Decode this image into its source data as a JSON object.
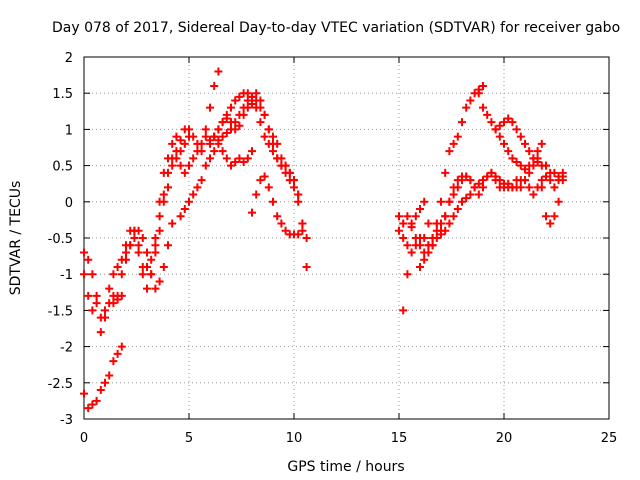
{
  "chart_data": {
    "type": "scatter",
    "title": "Day 078 of 2017, Sidereal Day-to-day VTEC variation (SDTVAR) for receiver gabo",
    "xlabel": "GPS time / hours",
    "ylabel": "SDTVAR / TECUs",
    "xlim": [
      0,
      25
    ],
    "ylim": [
      -3,
      2
    ],
    "xticks": [
      "0",
      "5",
      "10",
      "15",
      "20",
      "25"
    ],
    "yticks": [
      "-3",
      "-2.5",
      "-2",
      "-1.5",
      "-1",
      "-0.5",
      "0",
      "0.5",
      "1",
      "1.5",
      "2"
    ],
    "grid": true,
    "marker": "+",
    "color": "#ff0000",
    "series": [
      {
        "name": "s1",
        "x": [
          0.0,
          0.2,
          0.4,
          0.6,
          0.8,
          1.0,
          1.2,
          1.4,
          1.6,
          1.8,
          2.0,
          2.2,
          2.4,
          2.6,
          2.8,
          3.0,
          3.2,
          3.4,
          3.6,
          3.8,
          4.0,
          4.2,
          4.4,
          4.6,
          4.8,
          5.0,
          5.2,
          5.4,
          5.6,
          5.8,
          6.0,
          6.2,
          6.4
        ],
        "y": [
          -1.0,
          -1.3,
          -1.5,
          -1.4,
          -1.6,
          -1.5,
          -1.2,
          -1.0,
          -0.9,
          -0.8,
          -0.6,
          -0.4,
          -0.5,
          -0.7,
          -0.9,
          -0.9,
          -0.8,
          -0.7,
          -0.2,
          0.1,
          0.2,
          0.5,
          0.6,
          0.7,
          0.8,
          0.9,
          0.9,
          0.8,
          0.7,
          1.0,
          1.3,
          1.6,
          1.8
        ]
      },
      {
        "name": "s2",
        "x": [
          0.0,
          0.2,
          0.4,
          0.6,
          0.8,
          1.0,
          1.2,
          1.4,
          1.6,
          1.8,
          2.0,
          2.2,
          2.4,
          2.6,
          2.8,
          3.0,
          3.2,
          3.4,
          3.6,
          3.8,
          4.0,
          4.2,
          4.4,
          4.6,
          4.8,
          5.0
        ],
        "y": [
          -0.7,
          -0.8,
          -1.0,
          -1.3,
          -1.8,
          -1.6,
          -1.4,
          -1.3,
          -1.3,
          -1.0,
          -0.7,
          -0.6,
          -0.4,
          -0.6,
          -1.0,
          -1.2,
          -1.0,
          -0.5,
          0.0,
          0.4,
          0.6,
          0.8,
          0.9,
          0.85,
          1.0,
          1.0
        ]
      },
      {
        "name": "s3",
        "x": [
          0.0,
          0.2,
          0.4,
          0.6,
          0.8,
          1.0,
          1.2,
          1.4,
          1.6,
          1.8
        ],
        "y": [
          -2.65,
          -2.85,
          -2.8,
          -2.75,
          -2.6,
          -2.5,
          -2.4,
          -2.2,
          -2.1,
          -2.0
        ]
      },
      {
        "name": "s4",
        "x": [
          1.4,
          1.6,
          1.8,
          2.0,
          2.2,
          2.4,
          2.6,
          2.8,
          3.0,
          3.2,
          3.4,
          3.6,
          3.8,
          4.0,
          4.2
        ],
        "y": [
          -1.4,
          -1.35,
          -1.3,
          -0.8,
          -0.6,
          -0.4,
          -0.4,
          -0.5,
          -0.7,
          -1.0,
          -1.2,
          -1.1,
          -0.9,
          -0.6,
          -0.3
        ]
      },
      {
        "name": "s5",
        "x": [
          3.4,
          3.6,
          3.8,
          4.0,
          4.2,
          4.4,
          4.6,
          4.8,
          5.0,
          5.2,
          5.4,
          5.6,
          5.8,
          6.0,
          6.2,
          6.4,
          6.6,
          6.8,
          7.0,
          7.2,
          7.4,
          7.6,
          7.8,
          8.0,
          8.2,
          8.4,
          8.6,
          8.8,
          9.0,
          9.2,
          9.4,
          9.6,
          9.8,
          10.0,
          10.2,
          10.4
        ],
        "y": [
          -0.6,
          -0.4,
          0.0,
          0.4,
          0.6,
          0.7,
          0.5,
          0.4,
          0.5,
          0.6,
          0.7,
          0.8,
          0.9,
          0.85,
          0.9,
          1.0,
          1.1,
          1.15,
          1.1,
          1.0,
          1.05,
          1.2,
          1.3,
          1.35,
          1.3,
          1.1,
          0.9,
          0.8,
          0.7,
          0.6,
          0.5,
          0.4,
          0.3,
          0.2,
          0.0,
          -0.3
        ]
      },
      {
        "name": "s6",
        "x": [
          4.6,
          4.8,
          5.0,
          5.2,
          5.4,
          5.6,
          5.8,
          6.0,
          6.2,
          6.4,
          6.6,
          6.8,
          7.0,
          7.2,
          7.4,
          7.6,
          7.8,
          8.0,
          8.2,
          8.4,
          8.6,
          8.8,
          9.0,
          9.2,
          9.4,
          9.6,
          9.8,
          10.0,
          10.2,
          10.4,
          10.6
        ],
        "y": [
          -0.2,
          -0.1,
          0.0,
          0.1,
          0.2,
          0.3,
          0.5,
          0.6,
          0.7,
          0.8,
          0.9,
          0.95,
          1.0,
          1.1,
          1.2,
          1.3,
          1.4,
          1.45,
          1.5,
          1.4,
          1.2,
          1.0,
          0.8,
          0.6,
          0.5,
          0.5,
          0.4,
          0.3,
          0.1,
          -0.3,
          -0.9
        ]
      },
      {
        "name": "s7",
        "x": [
          6.0,
          6.2,
          6.4,
          6.6,
          6.8,
          7.0,
          7.2,
          7.4,
          7.6,
          7.8,
          8.0,
          8.2,
          8.4,
          8.6,
          8.8,
          9.0,
          9.2,
          9.4,
          9.6,
          9.8,
          10.0,
          10.2
        ],
        "y": [
          0.8,
          0.9,
          1.0,
          1.1,
          1.2,
          1.3,
          1.4,
          1.45,
          1.5,
          1.5,
          1.45,
          1.4,
          1.3,
          1.2,
          1.0,
          0.9,
          0.8,
          0.6,
          0.5,
          0.4,
          0.3,
          0.1
        ]
      },
      {
        "name": "s8",
        "x": [
          8.0,
          8.2,
          8.4,
          8.6,
          8.8,
          9.0,
          9.2,
          9.4,
          9.6,
          9.8,
          10.0,
          10.2,
          10.4,
          10.6
        ],
        "y": [
          -0.15,
          0.1,
          0.3,
          0.35,
          0.2,
          0.0,
          -0.2,
          -0.3,
          -0.4,
          -0.45,
          -0.45,
          -0.45,
          -0.4,
          -0.5
        ]
      },
      {
        "name": "s9",
        "x": [
          6.2,
          6.4,
          6.6,
          6.8,
          7.0,
          7.2,
          7.4,
          7.6,
          7.8,
          8.0
        ],
        "y": [
          0.9,
          0.85,
          0.7,
          0.6,
          0.5,
          0.55,
          0.6,
          0.55,
          0.6,
          0.7
        ]
      },
      {
        "name": "s10",
        "x": [
          15.0,
          15.2,
          15.4,
          15.6,
          15.8,
          16.0,
          16.2,
          16.4,
          16.6,
          16.8,
          17.0,
          17.2,
          17.4,
          17.6,
          17.8,
          18.0,
          18.2,
          18.4,
          18.6,
          18.8,
          19.0
        ],
        "y": [
          -0.4,
          -0.5,
          -0.6,
          -0.3,
          -0.2,
          -0.1,
          0.0,
          -0.3,
          -0.6,
          -0.3,
          0.0,
          0.4,
          0.7,
          0.8,
          0.9,
          1.1,
          1.3,
          1.4,
          1.5,
          1.55,
          1.6
        ]
      },
      {
        "name": "s11",
        "x": [
          15.2,
          15.4,
          15.6,
          15.8,
          16.0,
          16.2,
          16.4,
          16.6,
          16.8,
          17.0,
          17.2,
          17.4,
          17.6,
          17.8,
          18.0,
          18.2,
          18.4,
          18.6,
          18.8,
          19.0,
          19.2,
          19.4,
          19.6,
          19.8,
          20.0,
          20.2,
          20.4,
          20.6,
          20.8,
          21.0,
          21.2,
          21.4,
          21.6,
          21.8,
          22.0,
          22.2,
          22.4,
          22.6,
          22.8
        ],
        "y": [
          -1.5,
          -1.0,
          -0.7,
          -0.6,
          -0.5,
          -0.5,
          -0.6,
          -0.5,
          -0.3,
          -0.4,
          -0.2,
          0.0,
          0.1,
          0.2,
          0.3,
          0.35,
          0.3,
          0.2,
          0.25,
          0.3,
          0.35,
          0.4,
          0.3,
          0.2,
          0.2,
          0.25,
          0.2,
          0.3,
          0.2,
          0.3,
          0.4,
          0.5,
          0.6,
          0.2,
          -0.2,
          -0.3,
          -0.2,
          0.0,
          0.3
        ]
      },
      {
        "name": "s12",
        "x": [
          15.0,
          15.2,
          15.4,
          15.6,
          15.8,
          16.0,
          16.2,
          16.4,
          16.6,
          16.8,
          17.0,
          17.2,
          17.4,
          17.6,
          17.8,
          18.0,
          18.2,
          18.4,
          18.6,
          18.8,
          19.0,
          19.2,
          19.4,
          19.6,
          19.8,
          20.0,
          20.2,
          20.4,
          20.6,
          20.8,
          21.0,
          21.2,
          21.4,
          21.6,
          21.8,
          22.0,
          22.2,
          22.4,
          22.6,
          22.8
        ],
        "y": [
          -0.2,
          -0.3,
          -0.2,
          -0.35,
          -0.5,
          -0.6,
          -0.7,
          -0.6,
          -0.5,
          -0.4,
          -0.3,
          -0.2,
          0.0,
          0.2,
          0.3,
          0.35,
          0.35,
          0.3,
          0.2,
          0.1,
          0.2,
          0.35,
          0.4,
          0.35,
          0.3,
          0.25,
          0.2,
          0.2,
          0.2,
          0.3,
          0.3,
          0.2,
          0.1,
          0.2,
          0.3,
          0.35,
          0.4,
          0.4,
          0.35,
          0.35
        ]
      },
      {
        "name": "s13",
        "x": [
          18.8,
          19.0,
          19.2,
          19.4,
          19.6,
          19.8,
          20.0,
          20.2,
          20.4,
          20.6,
          20.8,
          21.0,
          21.2,
          21.4,
          21.6,
          21.8,
          22.0,
          22.2,
          22.4,
          22.6,
          22.8
        ],
        "y": [
          1.5,
          1.3,
          1.2,
          1.1,
          1.0,
          0.9,
          0.8,
          0.7,
          0.6,
          0.55,
          0.5,
          0.45,
          0.5,
          0.6,
          0.7,
          0.8,
          0.5,
          0.3,
          0.2,
          0.3,
          0.4
        ]
      },
      {
        "name": "s14",
        "x": [
          19.6,
          19.8,
          20.0,
          20.2,
          20.4,
          20.6,
          20.8,
          21.0,
          21.2,
          21.4,
          21.6,
          21.8,
          22.0
        ],
        "y": [
          1.0,
          1.05,
          1.1,
          1.15,
          1.1,
          1.0,
          0.9,
          0.8,
          0.7,
          0.6,
          0.55,
          0.5,
          0.5
        ]
      },
      {
        "name": "s15",
        "x": [
          16.0,
          16.2,
          16.4,
          16.6,
          16.8,
          17.0,
          17.2,
          17.4,
          17.6,
          17.8,
          18.0,
          18.2,
          18.4
        ],
        "y": [
          -0.9,
          -0.8,
          -0.7,
          -0.6,
          -0.5,
          -0.45,
          -0.4,
          -0.3,
          -0.2,
          -0.1,
          0.0,
          0.05,
          0.1
        ]
      }
    ]
  }
}
